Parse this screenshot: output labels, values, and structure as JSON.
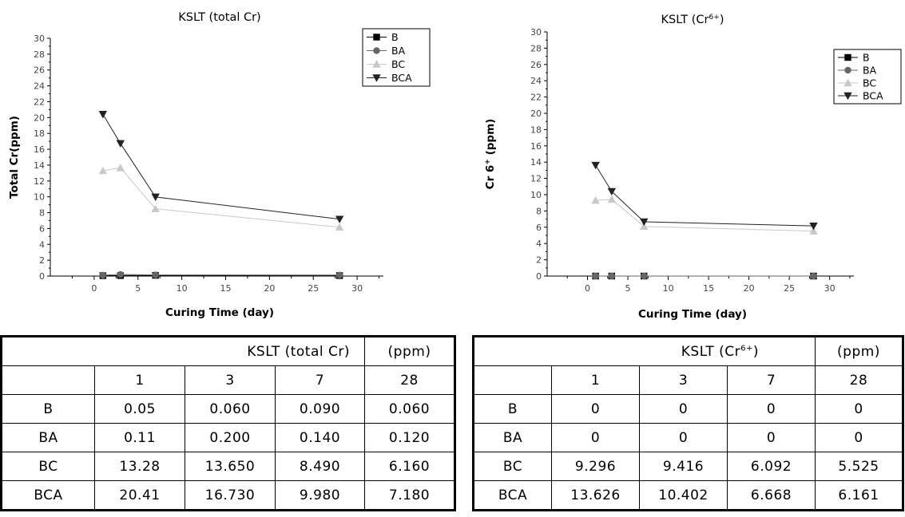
{
  "chart_data": [
    {
      "type": "line",
      "title": "KSLT (total Cr)",
      "xlabel": "Curing Time (day)",
      "ylabel": "Total Cr(ppm)",
      "xlim": [
        -5,
        33
      ],
      "ylim": [
        0,
        30
      ],
      "x_ticks": [
        0,
        5,
        10,
        15,
        20,
        25,
        30
      ],
      "y_ticks": [
        0,
        2,
        4,
        6,
        8,
        10,
        12,
        14,
        16,
        18,
        20,
        22,
        24,
        26,
        28,
        30
      ],
      "legend_position": "top-right",
      "x": [
        1,
        3,
        7,
        28
      ],
      "series": [
        {
          "name": "B",
          "marker": "square",
          "color": "#000000",
          "values": [
            0.05,
            0.06,
            0.09,
            0.06
          ]
        },
        {
          "name": "BA",
          "marker": "circle",
          "color": "#666666",
          "values": [
            0.11,
            0.2,
            0.14,
            0.12
          ]
        },
        {
          "name": "BC",
          "marker": "triangle-up",
          "color": "#c8c8c8",
          "values": [
            13.28,
            13.65,
            8.49,
            6.16
          ]
        },
        {
          "name": "BCA",
          "marker": "triangle-down",
          "color": "#222222",
          "values": [
            20.41,
            16.73,
            9.98,
            7.18
          ]
        }
      ]
    },
    {
      "type": "line",
      "title": "KSLT (Cr",
      "title_sup": "6+",
      "title_end": ")",
      "xlabel": "Curing Time (day)",
      "ylabel": "Cr 6",
      "ylabel_sup": "+",
      "ylabel_end": " (ppm)",
      "xlim": [
        -5,
        33
      ],
      "ylim": [
        0,
        30
      ],
      "x_ticks": [
        0,
        5,
        10,
        15,
        20,
        25,
        30
      ],
      "y_ticks": [
        0,
        2,
        4,
        6,
        8,
        10,
        12,
        14,
        16,
        18,
        20,
        22,
        24,
        26,
        28,
        30
      ],
      "legend_position": "top-right",
      "x": [
        1,
        3,
        7,
        28
      ],
      "series": [
        {
          "name": "B",
          "marker": "square",
          "color": "#000000",
          "values": [
            0,
            0,
            0,
            0
          ]
        },
        {
          "name": "BA",
          "marker": "circle",
          "color": "#666666",
          "values": [
            0,
            0,
            0,
            0
          ]
        },
        {
          "name": "BC",
          "marker": "triangle-up",
          "color": "#c8c8c8",
          "values": [
            9.296,
            9.416,
            6.092,
            5.525
          ]
        },
        {
          "name": "BCA",
          "marker": "triangle-down",
          "color": "#222222",
          "values": [
            13.626,
            10.402,
            6.668,
            6.161
          ]
        }
      ]
    }
  ],
  "tables": {
    "left": {
      "title": "KSLT (total Cr)",
      "unit": "(ppm)",
      "columns": [
        "1",
        "3",
        "7",
        "28"
      ],
      "rows": [
        {
          "label": "B",
          "cells": [
            "0.05",
            "0.060",
            "0.090",
            "0.060"
          ]
        },
        {
          "label": "BA",
          "cells": [
            "0.11",
            "0.200",
            "0.140",
            "0.120"
          ]
        },
        {
          "label": "BC",
          "cells": [
            "13.28",
            "13.650",
            "8.490",
            "6.160"
          ]
        },
        {
          "label": "BCA",
          "cells": [
            "20.41",
            "16.730",
            "9.980",
            "7.180"
          ]
        }
      ]
    },
    "right": {
      "title": "KSLT (Cr",
      "title_sup": "6+",
      "title_end": ")",
      "unit": "(ppm)",
      "columns": [
        "1",
        "3",
        "7",
        "28"
      ],
      "rows": [
        {
          "label": "B",
          "cells": [
            "0",
            "0",
            "0",
            "0"
          ]
        },
        {
          "label": "BA",
          "cells": [
            "0",
            "0",
            "0",
            "0"
          ]
        },
        {
          "label": "BC",
          "cells": [
            "9.296",
            "9.416",
            "6.092",
            "5.525"
          ]
        },
        {
          "label": "BCA",
          "cells": [
            "13.626",
            "10.402",
            "6.668",
            "6.161"
          ]
        }
      ]
    }
  }
}
